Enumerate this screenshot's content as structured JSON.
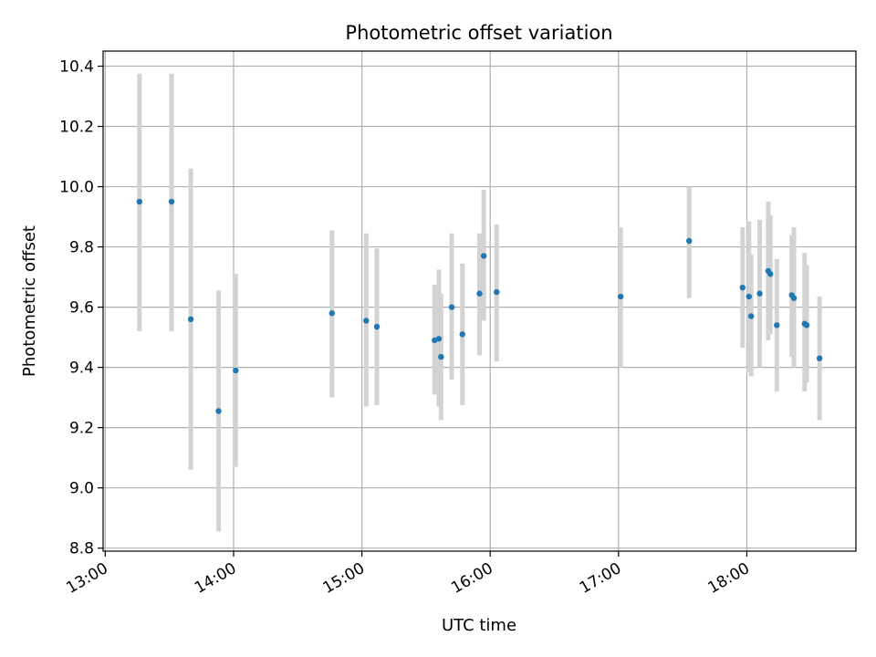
{
  "chart_data": {
    "type": "scatter",
    "title": "Photometric offset variation",
    "xlabel": "UTC time",
    "ylabel": "Photometric offset",
    "xlim": [
      "12:59",
      "18:51"
    ],
    "ylim": [
      8.79,
      10.45
    ],
    "x_ticks": [
      "13:00",
      "14:00",
      "15:00",
      "16:00",
      "17:00",
      "18:00"
    ],
    "y_ticks": [
      8.8,
      9.0,
      9.2,
      9.4,
      9.6,
      9.8,
      10.0,
      10.2,
      10.4
    ],
    "grid": true,
    "colors": {
      "point": "#1f77b4",
      "error_bar": "#d3d3d3",
      "grid": "#b0b0b0"
    },
    "series": [
      {
        "points": [
          {
            "x": "13:16",
            "y": 9.95,
            "lo": 9.52,
            "hi": 10.375
          },
          {
            "x": "13:31",
            "y": 9.95,
            "lo": 9.52,
            "hi": 10.375
          },
          {
            "x": "13:40",
            "y": 9.56,
            "lo": 9.06,
            "hi": 10.06
          },
          {
            "x": "13:53",
            "y": 9.255,
            "lo": 8.855,
            "hi": 9.655
          },
          {
            "x": "14:01",
            "y": 9.39,
            "lo": 9.07,
            "hi": 9.71
          },
          {
            "x": "14:46",
            "y": 9.58,
            "lo": 9.3,
            "hi": 9.855
          },
          {
            "x": "15:02",
            "y": 9.555,
            "lo": 9.27,
            "hi": 9.845
          },
          {
            "x": "15:07",
            "y": 9.535,
            "lo": 9.275,
            "hi": 9.795
          },
          {
            "x": "15:34",
            "y": 9.49,
            "lo": 9.31,
            "hi": 9.675
          },
          {
            "x": "15:36",
            "y": 9.495,
            "lo": 9.27,
            "hi": 9.725
          },
          {
            "x": "15:37",
            "y": 9.435,
            "lo": 9.225,
            "hi": 9.645
          },
          {
            "x": "15:42",
            "y": 9.6,
            "lo": 9.36,
            "hi": 9.845
          },
          {
            "x": "15:47",
            "y": 9.51,
            "lo": 9.275,
            "hi": 9.745
          },
          {
            "x": "15:55",
            "y": 9.645,
            "lo": 9.44,
            "hi": 9.845
          },
          {
            "x": "15:57",
            "y": 9.77,
            "lo": 9.555,
            "hi": 9.99
          },
          {
            "x": "16:03",
            "y": 9.65,
            "lo": 9.42,
            "hi": 9.875
          },
          {
            "x": "17:01",
            "y": 9.635,
            "lo": 9.4,
            "hi": 9.865
          },
          {
            "x": "17:33",
            "y": 9.82,
            "lo": 9.63,
            "hi": 10.0
          },
          {
            "x": "17:58",
            "y": 9.665,
            "lo": 9.465,
            "hi": 9.865
          },
          {
            "x": "18:01",
            "y": 9.635,
            "lo": 9.385,
            "hi": 9.885
          },
          {
            "x": "18:02",
            "y": 9.57,
            "lo": 9.37,
            "hi": 9.775
          },
          {
            "x": "18:06",
            "y": 9.645,
            "lo": 9.4,
            "hi": 9.89
          },
          {
            "x": "18:10",
            "y": 9.72,
            "lo": 9.49,
            "hi": 9.95
          },
          {
            "x": "18:11",
            "y": 9.71,
            "lo": 9.51,
            "hi": 9.905
          },
          {
            "x": "18:14",
            "y": 9.54,
            "lo": 9.32,
            "hi": 9.76
          },
          {
            "x": "18:21",
            "y": 9.64,
            "lo": 9.435,
            "hi": 9.84
          },
          {
            "x": "18:22",
            "y": 9.63,
            "lo": 9.4,
            "hi": 9.865
          },
          {
            "x": "18:27",
            "y": 9.545,
            "lo": 9.32,
            "hi": 9.78
          },
          {
            "x": "18:28",
            "y": 9.54,
            "lo": 9.35,
            "hi": 9.74
          },
          {
            "x": "18:34",
            "y": 9.43,
            "lo": 9.225,
            "hi": 9.635
          }
        ]
      }
    ]
  }
}
